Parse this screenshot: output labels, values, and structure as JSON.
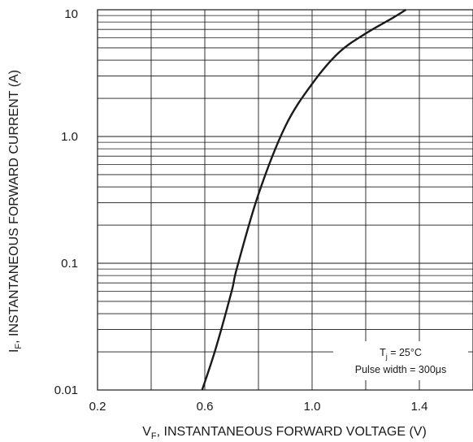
{
  "chart_data": {
    "type": "line",
    "xlabel": {
      "main": "V",
      "sub": "F",
      "rest": ", INSTANTANEOUS FORWARD VOLTAGE (V)"
    },
    "ylabel": {
      "main": "I",
      "sub": "F",
      "rest": ", INSTANTANEOUS FORWARD CURRENT (A)"
    },
    "xlim": [
      0.2,
      1.6
    ],
    "ylim": [
      0.01,
      10
    ],
    "yscale": "log",
    "grid": true,
    "x_ticks": [
      {
        "value": 0.2,
        "label": "0.2"
      },
      {
        "value": 0.6,
        "label": "0.6"
      },
      {
        "value": 1.0,
        "label": "1.0"
      },
      {
        "value": 1.4,
        "label": "1.4"
      }
    ],
    "y_ticks": [
      {
        "value": 10,
        "label": "10"
      },
      {
        "value": 1,
        "label": "1.0"
      },
      {
        "value": 0.1,
        "label": "0.1"
      },
      {
        "value": 0.01,
        "label": "0.01"
      }
    ],
    "annotations": [
      {
        "main": "T",
        "sub": "j",
        "rest": " = 25°C"
      },
      {
        "text": "Pulse width = 300μs"
      }
    ],
    "series": [
      {
        "values": [
          [
            0.59,
            0.01
          ],
          [
            0.64,
            0.021
          ],
          [
            0.7,
            0.06
          ],
          [
            0.72,
            0.092
          ],
          [
            0.8,
            0.35
          ],
          [
            0.9,
            1.2
          ],
          [
            1.0,
            2.6
          ],
          [
            1.1,
            4.6
          ],
          [
            1.2,
            6.5
          ],
          [
            1.3,
            8.6
          ],
          [
            1.35,
            10
          ]
        ]
      }
    ]
  }
}
